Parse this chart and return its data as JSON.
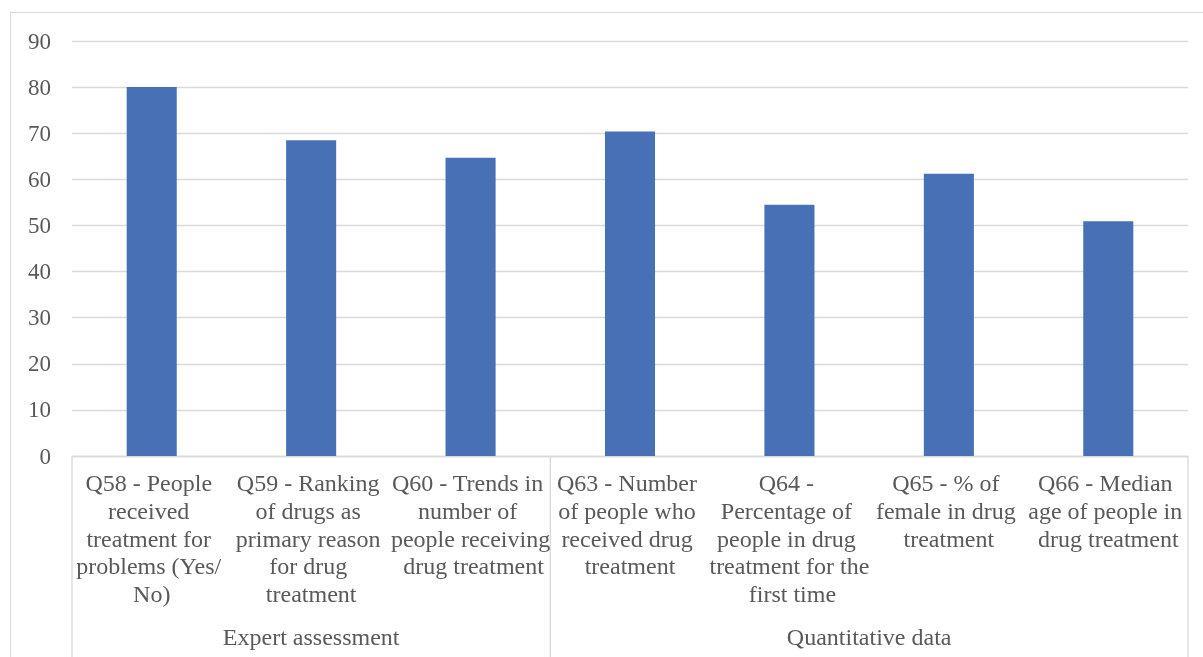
{
  "chart_data": {
    "type": "bar",
    "categories": [
      "Q58 - People received treatment for problems (Yes/ No)",
      "Q59 - Ranking of drugs as primary reason for drug treatment",
      "Q60 - Trends in number of people receiving drug treatment",
      "Q63 - Number of people who received drug treatment",
      "Q64 - Percentage of people in drug treatment for the first time",
      "Q65 - % of female in drug treatment",
      "Q66 - Median age of people in drug treatment"
    ],
    "values": [
      80,
      68.5,
      64.7,
      70.4,
      54.5,
      61.2,
      50.9
    ],
    "color": "#4870b5",
    "ylim": [
      0,
      90
    ],
    "yticks": [
      0,
      10,
      20,
      30,
      40,
      50,
      60,
      70,
      80,
      90
    ],
    "grid": "y",
    "annotations": [
      "Expert assessment",
      "Quantitative data"
    ]
  }
}
